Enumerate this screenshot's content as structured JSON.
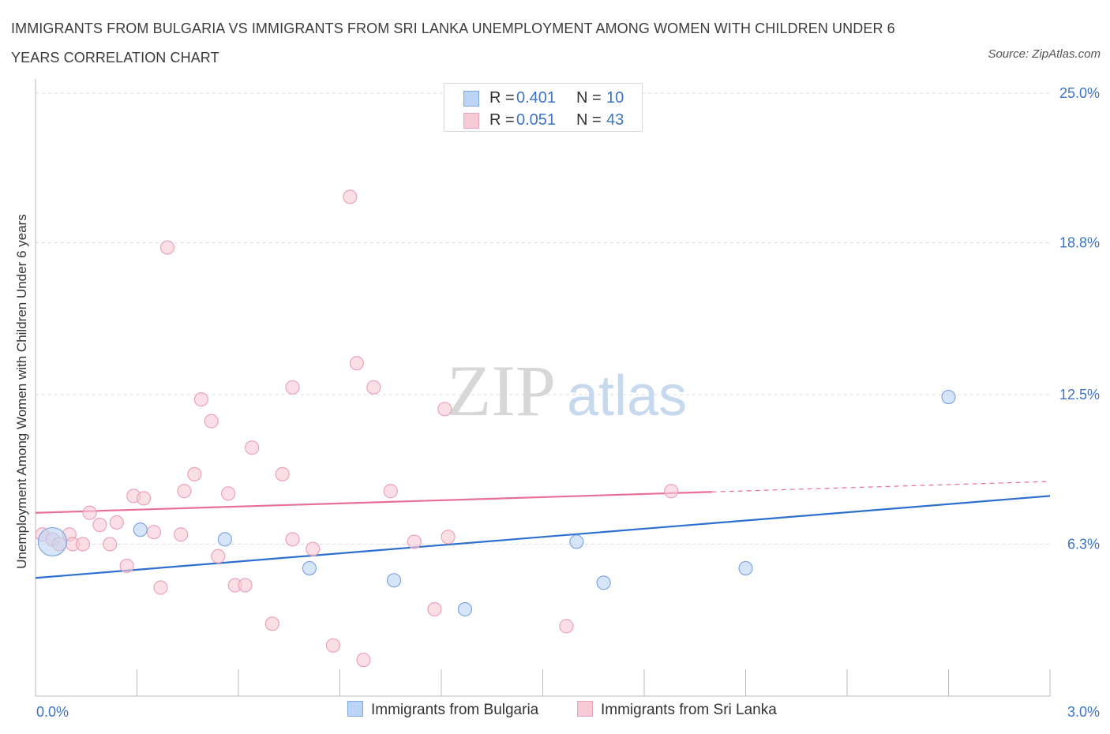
{
  "header": {
    "title": "IMMIGRANTS FROM BULGARIA VS IMMIGRANTS FROM SRI LANKA UNEMPLOYMENT AMONG WOMEN WITH CHILDREN UNDER 6 YEARS CORRELATION CHART",
    "source": "Source: ZipAtlas.com"
  },
  "watermark": {
    "zip": "ZIP",
    "atlas": "atlas"
  },
  "legend_top": {
    "rows": [
      {
        "r_label": "R =",
        "r_value": "0.401",
        "n_label": "N =",
        "n_value": "10"
      },
      {
        "r_label": "R =",
        "r_value": "0.051",
        "n_label": "N =",
        "n_value": "43"
      }
    ]
  },
  "legend_bottom": {
    "items": [
      "Immigrants from Bulgaria",
      "Immigrants from Sri Lanka"
    ]
  },
  "colors": {
    "bulgaria_fill": "#bcd4f5",
    "bulgaria_stroke": "#7ea6e0",
    "bulgaria_line": "#2d6fce",
    "srilanka_fill": "#f8c9d6",
    "srilanka_stroke": "#eba3b8",
    "srilanka_line": "#e86f98",
    "tick_label": "#3d74c5",
    "grid": "#dcdcdc"
  },
  "chart_data": {
    "type": "scatter",
    "title": "IMMIGRANTS FROM BULGARIA VS IMMIGRANTS FROM SRI LANKA UNEMPLOYMENT AMONG WOMEN WITH CHILDREN UNDER 6 YEARS CORRELATION CHART",
    "xlabel": "",
    "ylabel": "Unemployment Among Women with Children Under 6 years",
    "xlim": [
      0,
      3.0
    ],
    "ylim": [
      0,
      25.0
    ],
    "x_tick_labels": [
      "0.0%",
      "3.0%"
    ],
    "y_ticks": [
      6.3,
      12.5,
      18.8,
      25.0
    ],
    "y_tick_labels": [
      "6.3%",
      "12.5%",
      "18.8%",
      "25.0%"
    ],
    "grid": true,
    "legend_position": "top-center",
    "series": [
      {
        "name": "Immigrants from Bulgaria",
        "points": [
          {
            "x": 0.05,
            "y": 6.4,
            "big": true
          },
          {
            "x": 0.31,
            "y": 6.9
          },
          {
            "x": 0.56,
            "y": 6.5
          },
          {
            "x": 0.81,
            "y": 5.3
          },
          {
            "x": 1.06,
            "y": 4.8
          },
          {
            "x": 1.27,
            "y": 3.6
          },
          {
            "x": 1.6,
            "y": 6.4
          },
          {
            "x": 1.68,
            "y": 4.7
          },
          {
            "x": 2.1,
            "y": 5.3
          },
          {
            "x": 2.7,
            "y": 12.4
          }
        ],
        "trend": {
          "x": [
            0.0,
            3.0
          ],
          "y": [
            4.9,
            8.3
          ],
          "dashed_from": null
        }
      },
      {
        "name": "Immigrants from Sri Lanka",
        "points": [
          {
            "x": 0.02,
            "y": 6.7
          },
          {
            "x": 0.05,
            "y": 6.5
          },
          {
            "x": 0.07,
            "y": 6.3
          },
          {
            "x": 0.1,
            "y": 6.7
          },
          {
            "x": 0.11,
            "y": 6.3
          },
          {
            "x": 0.14,
            "y": 6.3
          },
          {
            "x": 0.16,
            "y": 7.6
          },
          {
            "x": 0.19,
            "y": 7.1
          },
          {
            "x": 0.22,
            "y": 6.3
          },
          {
            "x": 0.24,
            "y": 7.2
          },
          {
            "x": 0.27,
            "y": 5.4
          },
          {
            "x": 0.29,
            "y": 8.3
          },
          {
            "x": 0.32,
            "y": 8.2
          },
          {
            "x": 0.35,
            "y": 6.8
          },
          {
            "x": 0.37,
            "y": 4.5
          },
          {
            "x": 0.39,
            "y": 18.6
          },
          {
            "x": 0.43,
            "y": 6.7
          },
          {
            "x": 0.44,
            "y": 8.5
          },
          {
            "x": 0.47,
            "y": 9.2
          },
          {
            "x": 0.49,
            "y": 12.3
          },
          {
            "x": 0.52,
            "y": 11.4
          },
          {
            "x": 0.54,
            "y": 5.8
          },
          {
            "x": 0.57,
            "y": 8.4
          },
          {
            "x": 0.59,
            "y": 4.6
          },
          {
            "x": 0.62,
            "y": 4.6
          },
          {
            "x": 0.64,
            "y": 10.3
          },
          {
            "x": 0.7,
            "y": 3.0
          },
          {
            "x": 0.73,
            "y": 9.2
          },
          {
            "x": 0.76,
            "y": 12.8
          },
          {
            "x": 0.76,
            "y": 6.5
          },
          {
            "x": 0.82,
            "y": 6.1
          },
          {
            "x": 0.88,
            "y": 2.1
          },
          {
            "x": 0.93,
            "y": 20.7
          },
          {
            "x": 0.95,
            "y": 13.8
          },
          {
            "x": 0.97,
            "y": 1.5
          },
          {
            "x": 1.0,
            "y": 12.8
          },
          {
            "x": 1.05,
            "y": 8.5
          },
          {
            "x": 1.12,
            "y": 6.4
          },
          {
            "x": 1.18,
            "y": 3.6
          },
          {
            "x": 1.21,
            "y": 11.9
          },
          {
            "x": 1.22,
            "y": 6.6
          },
          {
            "x": 1.57,
            "y": 2.9
          },
          {
            "x": 1.88,
            "y": 8.5
          }
        ],
        "trend": {
          "x": [
            0.0,
            3.0
          ],
          "y": [
            7.6,
            8.9
          ],
          "dashed_from": 2.0
        }
      }
    ]
  }
}
